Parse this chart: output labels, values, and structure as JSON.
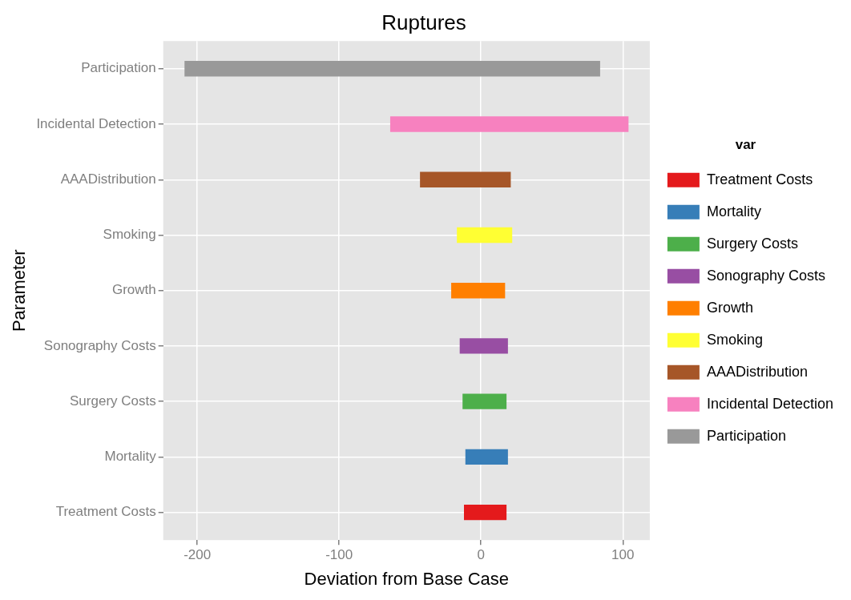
{
  "chart_data": {
    "type": "bar",
    "orientation": "horizontal",
    "title": "Ruptures",
    "xlabel": "Deviation from Base Case",
    "ylabel": "Parameter",
    "legend_title": "var",
    "legend": "right",
    "grid": true,
    "categories": [
      "Participation",
      "Incidental Detection",
      "AAADistribution",
      "Smoking",
      "Growth",
      "Sonography Costs",
      "Surgery Costs",
      "Mortality",
      "Treatment Costs"
    ],
    "xlim": [
      -224,
      119
    ],
    "xticks": [
      -200,
      -100,
      0,
      100
    ],
    "series": [
      {
        "name": "Treatment Costs",
        "color": "#e41a1c",
        "values": [
          null,
          null,
          null,
          null,
          null,
          null,
          null,
          null,
          30
        ],
        "base": [
          null,
          null,
          null,
          null,
          null,
          null,
          null,
          null,
          -12
        ]
      },
      {
        "name": "Mortality",
        "color": "#377eb8",
        "values": [
          null,
          null,
          null,
          null,
          null,
          null,
          null,
          30,
          null
        ],
        "base": [
          null,
          null,
          null,
          null,
          null,
          null,
          null,
          -11,
          null
        ]
      },
      {
        "name": "Surgery Costs",
        "color": "#4daf4a",
        "values": [
          null,
          null,
          null,
          null,
          null,
          null,
          31,
          null,
          null
        ],
        "base": [
          null,
          null,
          null,
          null,
          null,
          null,
          -13,
          null,
          null
        ]
      },
      {
        "name": "Sonography Costs",
        "color": "#984ea3",
        "values": [
          null,
          null,
          null,
          null,
          null,
          34,
          null,
          null,
          null
        ],
        "base": [
          null,
          null,
          null,
          null,
          null,
          -15,
          null,
          null,
          null
        ]
      },
      {
        "name": "Growth",
        "color": "#ff7f00",
        "values": [
          null,
          null,
          null,
          null,
          38,
          null,
          null,
          null,
          null
        ],
        "base": [
          null,
          null,
          null,
          null,
          -21,
          null,
          null,
          null,
          null
        ]
      },
      {
        "name": "Smoking",
        "color": "#ffff33",
        "values": [
          null,
          null,
          null,
          39,
          null,
          null,
          null,
          null,
          null
        ],
        "base": [
          null,
          null,
          null,
          -17,
          null,
          null,
          null,
          null,
          null
        ]
      },
      {
        "name": "AAADistribution",
        "color": "#a65628",
        "values": [
          null,
          null,
          64,
          null,
          null,
          null,
          null,
          null,
          null
        ],
        "base": [
          null,
          null,
          -43,
          null,
          null,
          null,
          null,
          null,
          null
        ]
      },
      {
        "name": "Incidental Detection",
        "color": "#f781bf",
        "values": [
          null,
          168,
          null,
          null,
          null,
          null,
          null,
          null,
          null
        ],
        "base": [
          null,
          -64,
          null,
          null,
          null,
          null,
          null,
          null,
          null
        ]
      },
      {
        "name": "Participation",
        "color": "#999999",
        "values": [
          293,
          null,
          null,
          null,
          null,
          null,
          null,
          null,
          null
        ],
        "base": [
          -209,
          null,
          null,
          null,
          null,
          null,
          null,
          null,
          null
        ]
      }
    ]
  }
}
